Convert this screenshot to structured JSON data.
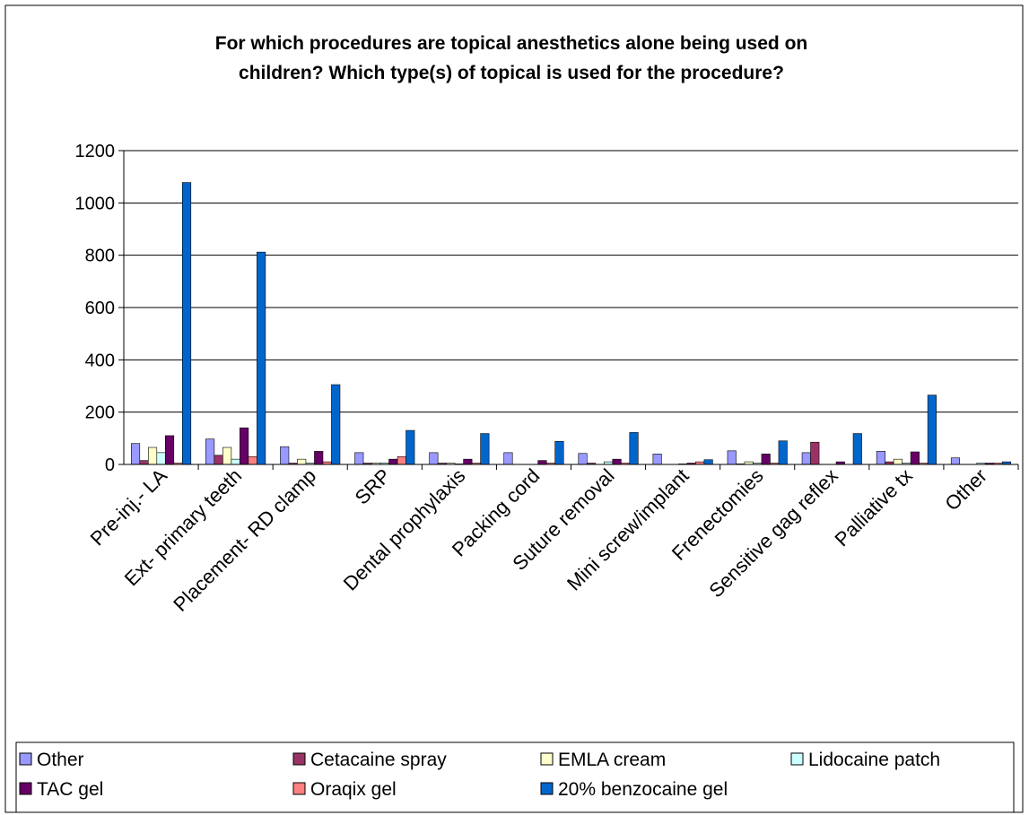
{
  "chart_data": {
    "type": "bar",
    "title_lines": [
      "For which procedures are topical anesthetics alone being used on",
      "children? Which type(s) of topical is used for the procedure?"
    ],
    "categories": [
      "Pre-inj.- LA",
      "Ext- primary teeth",
      "Placement- RD clamp",
      "SRP",
      "Dental prophylaxis",
      "Packing cord",
      "Suture removal",
      "Mini screw/implant",
      "Frenectomies",
      "Sensitive gag reflex",
      "Palliative tx",
      "Other"
    ],
    "ylim": [
      0,
      1200
    ],
    "yticks": [
      0,
      200,
      400,
      600,
      800,
      1000,
      1200
    ],
    "grid": true,
    "legend_position": "bottom",
    "series": [
      {
        "name": "Other",
        "color": "#9999FF",
        "values": [
          80,
          97,
          68,
          45,
          45,
          45,
          42,
          40,
          52,
          45,
          50,
          25
        ]
      },
      {
        "name": "Cetacaine spray",
        "color": "#993366",
        "values": [
          15,
          35,
          5,
          5,
          5,
          0,
          5,
          0,
          2,
          85,
          10,
          0
        ]
      },
      {
        "name": "EMLA cream",
        "color": "#FFFFCC",
        "values": [
          65,
          65,
          20,
          5,
          5,
          0,
          0,
          0,
          10,
          0,
          20,
          0
        ]
      },
      {
        "name": "Lidocaine patch",
        "color": "#CCFFFF",
        "values": [
          45,
          20,
          5,
          5,
          2,
          0,
          10,
          2,
          5,
          0,
          5,
          5
        ]
      },
      {
        "name": "TAC gel",
        "color": "#660066",
        "values": [
          110,
          140,
          50,
          20,
          20,
          15,
          20,
          5,
          40,
          10,
          48,
          5
        ]
      },
      {
        "name": "Oraqix gel",
        "color": "#FF8080",
        "values": [
          5,
          30,
          10,
          30,
          5,
          5,
          5,
          10,
          5,
          0,
          5,
          5
        ]
      },
      {
        "name": "20% benzocaine gel",
        "color": "#0066CC",
        "values": [
          1078,
          812,
          305,
          130,
          118,
          88,
          122,
          18,
          90,
          118,
          265,
          10
        ]
      }
    ]
  }
}
